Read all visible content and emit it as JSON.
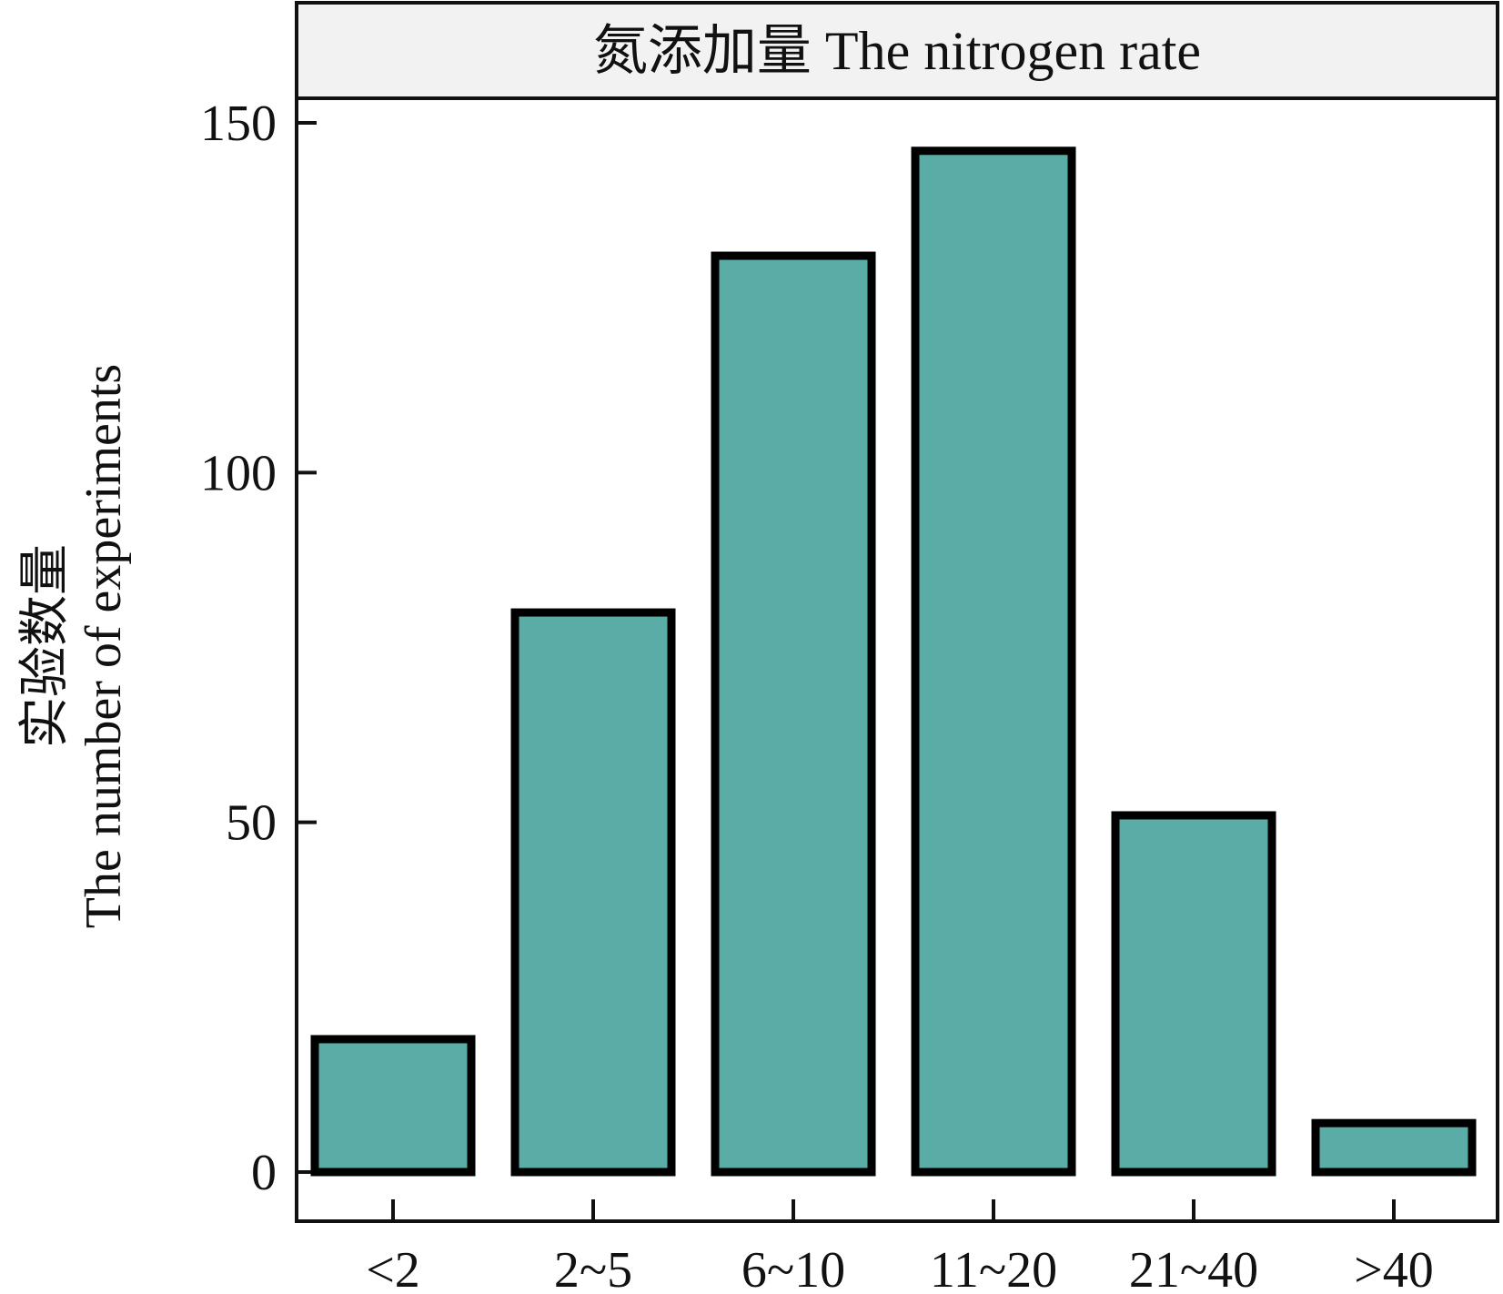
{
  "chart_data": {
    "type": "bar",
    "panel_title": "氮添加量 The nitrogen rate",
    "categories": [
      "<2",
      "2~5",
      "6~10",
      "11~20",
      "21~40",
      ">40"
    ],
    "values": [
      19,
      80,
      131,
      146,
      51,
      7
    ],
    "ylabel_line1": "实验数量",
    "ylabel_line2": "The number of experiments",
    "xlabel": "",
    "ylim": [
      0,
      150
    ],
    "yticks": [
      0,
      50,
      100,
      150
    ],
    "bar_color": "#5aada6",
    "edge_color": "#000000",
    "grid": false
  }
}
